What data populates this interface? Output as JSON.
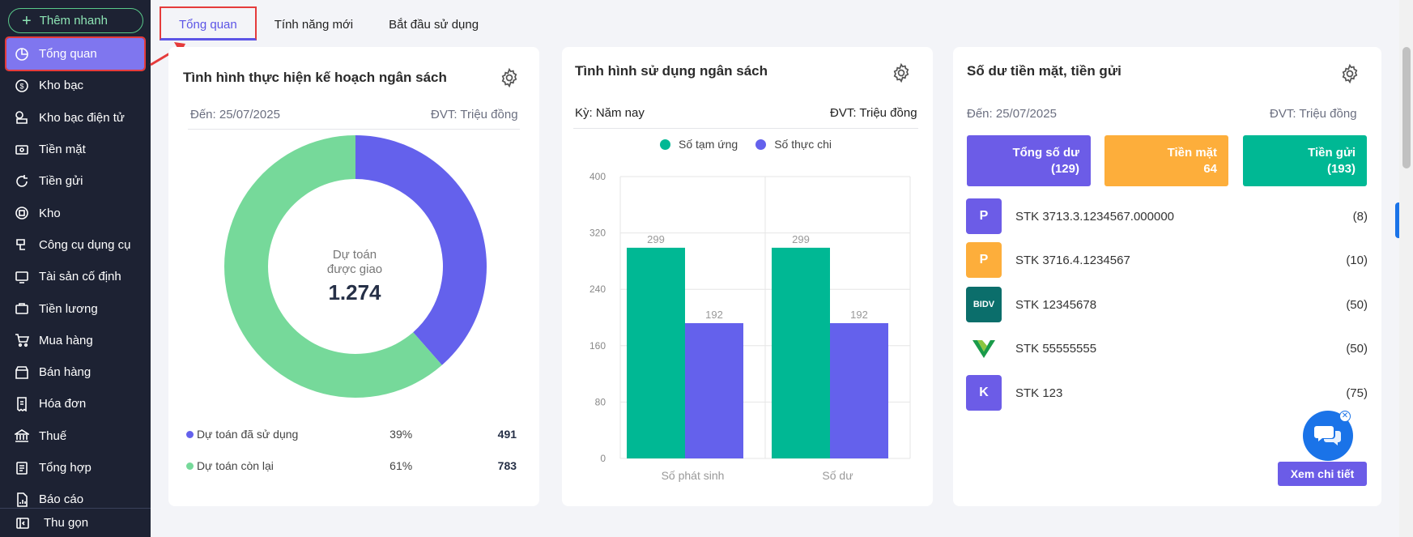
{
  "sidebar": {
    "quick_add": "Thêm nhanh",
    "items": [
      {
        "label": "Tổng quan",
        "icon": "pie-chart-icon",
        "active": true
      },
      {
        "label": "Kho bạc",
        "icon": "money-circle-icon"
      },
      {
        "label": "Kho bạc điện tử",
        "icon": "coins-icon"
      },
      {
        "label": "Tiền mặt",
        "icon": "cash-icon"
      },
      {
        "label": "Tiền gửi",
        "icon": "deposit-icon"
      },
      {
        "label": "Kho",
        "icon": "warehouse-icon"
      },
      {
        "label": "Công cụ dụng cụ",
        "icon": "tools-icon"
      },
      {
        "label": "Tài sản cố định",
        "icon": "asset-icon"
      },
      {
        "label": "Tiền lương",
        "icon": "salary-icon"
      },
      {
        "label": "Mua hàng",
        "icon": "cart-icon"
      },
      {
        "label": "Bán hàng",
        "icon": "sales-icon"
      },
      {
        "label": "Hóa đơn",
        "icon": "invoice-icon"
      },
      {
        "label": "Thuế",
        "icon": "bank-building-icon"
      },
      {
        "label": "Tổng hợp",
        "icon": "summary-icon"
      },
      {
        "label": "Báo cáo",
        "icon": "report-icon"
      }
    ],
    "collapse": "Thu gọn"
  },
  "tabs": [
    {
      "label": "Tổng quan",
      "active": true
    },
    {
      "label": "Tính năng mới"
    },
    {
      "label": "Bắt đầu sử dụng"
    }
  ],
  "budget_plan": {
    "title": "Tình hình thực hiện kế hoạch ngân sách",
    "date": "Đến: 25/07/2025",
    "unit": "ĐVT: Triệu đồng",
    "center_label_1": "Dự toán",
    "center_label_2": "được giao",
    "center_value": "1.274",
    "legend": [
      {
        "label": "Dự toán đã sử dụng",
        "percent": "39%",
        "value": "491",
        "color": "#6461ec"
      },
      {
        "label": "Dự toán còn lại",
        "percent": "61%",
        "value": "783",
        "color": "#76d99a"
      }
    ]
  },
  "budget_usage": {
    "title": "Tình hình sử dụng ngân sách",
    "period": "Kỳ: Năm nay",
    "unit": "ĐVT: Triệu đồng"
  },
  "chart_data": {
    "type": "bar",
    "categories": [
      "Số phát sinh",
      "Số dư"
    ],
    "series": [
      {
        "name": "Số tạm ứng",
        "values": [
          299,
          299
        ],
        "color": "#00b894"
      },
      {
        "name": "Số thực chi",
        "values": [
          192,
          192
        ],
        "color": "#6461ec"
      }
    ],
    "ylim": [
      0,
      400
    ],
    "yticks": [
      0,
      80,
      160,
      240,
      320,
      400
    ],
    "legend": "top",
    "grid": true
  },
  "cash_balance": {
    "title": "Số dư tiền mặt, tiền gửi",
    "date": "Đến: 25/07/2025",
    "unit": "ĐVT: Triệu đồng",
    "stats": [
      {
        "label": "Tổng số dư",
        "value": "(129)",
        "color": "#6c5ce7"
      },
      {
        "label": "Tiền mặt",
        "value": "64",
        "color": "#fdae3b"
      },
      {
        "label": "Tiền gửi",
        "value": "(193)",
        "color": "#00b894"
      }
    ],
    "accounts": [
      {
        "badge": "P",
        "badge_color": "#6c5ce7",
        "name": "STK 3713.3.1234567.000000",
        "count": "(8)"
      },
      {
        "badge": "P",
        "badge_color": "#fdae3b",
        "name": "STK 3716.4.1234567",
        "count": "(10)"
      },
      {
        "badge": "BIDV",
        "badge_color": "#0b6e6b",
        "name": "STK 12345678",
        "count": "(50)"
      },
      {
        "badge": "",
        "badge_color": "#ffffff",
        "name": "STK 55555555",
        "count": "(50)"
      },
      {
        "badge": "K",
        "badge_color": "#6c5ce7",
        "name": "STK 123",
        "count": "(75)"
      }
    ],
    "detail_button": "Xem chi tiết"
  }
}
